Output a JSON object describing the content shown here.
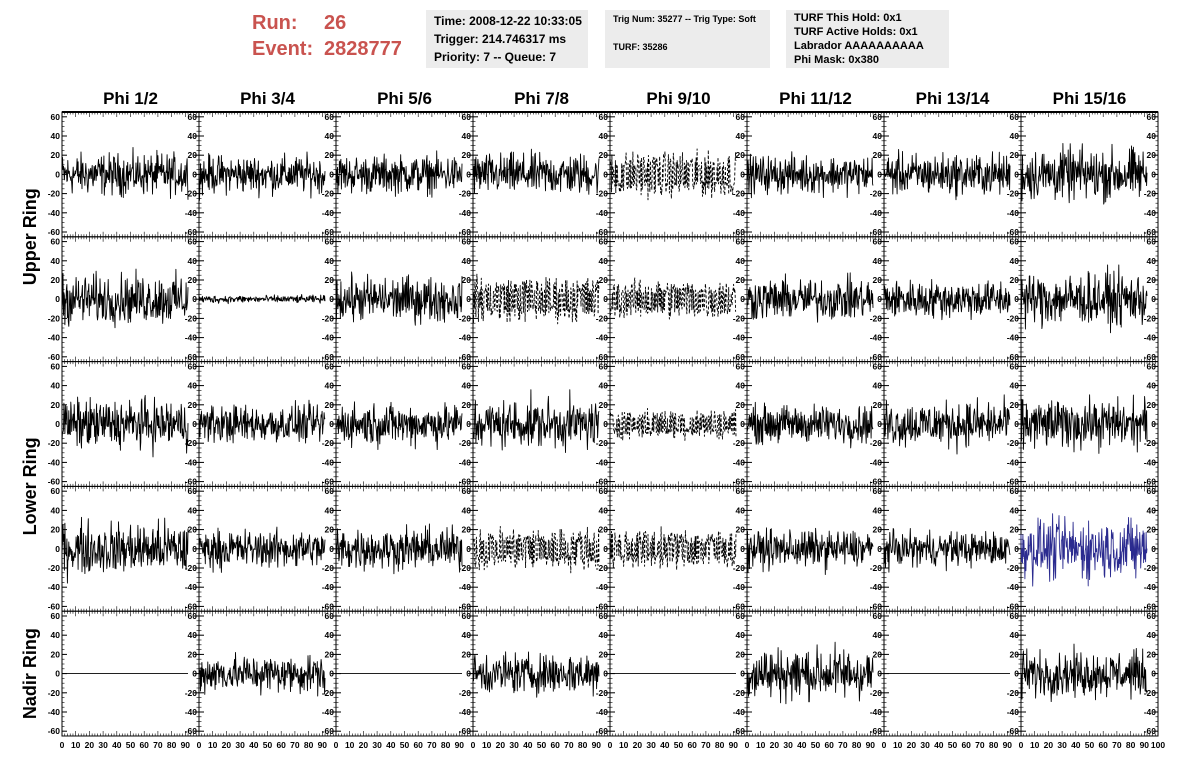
{
  "header": {
    "run_label": "Run:",
    "run_value": "26",
    "event_label": "Event:",
    "event_value": "2828777",
    "box1": [
      "Time: 2008-12-22 10:33:05",
      "Trigger: 214.746317 ms",
      "Priority: 7 -- Queue: 7"
    ],
    "box2": [
      "Trig Num: 35277 -- Trig Type: Soft",
      "",
      "TURF: 35286"
    ],
    "box3": [
      "TURF This Hold: 0x1",
      "TURF Active Holds: 0x1",
      "Labrador AAAAAAAAAA",
      "Phi Mask: 0x380"
    ]
  },
  "colors": {
    "trace": "#000000",
    "highlight_trace": "#2b2b8f",
    "name_red": "#c9534f",
    "box_bg": "#ececec"
  },
  "chart_data": {
    "type": "line",
    "columns": [
      "Phi 1/2",
      "Phi 3/4",
      "Phi 5/6",
      "Phi 7/8",
      "Phi 9/10",
      "Phi 11/12",
      "Phi 13/14",
      "Phi 15/16"
    ],
    "rows": [
      "Upper Ring",
      "Upper Ring",
      "Lower Ring",
      "Lower Ring",
      "Nadir Ring"
    ],
    "row_labels": [
      {
        "label": "Upper Ring",
        "span": [
          0,
          1
        ]
      },
      {
        "label": "Lower Ring",
        "span": [
          2,
          3
        ]
      },
      {
        "label": "Nadir Ring",
        "span": [
          4,
          4
        ]
      }
    ],
    "ylim": [
      -65,
      65
    ],
    "y_ticks": [
      -60,
      -40,
      -20,
      0,
      20,
      40,
      60
    ],
    "y_tick_labels": [
      "-60",
      "-40",
      "-20",
      "0",
      "20",
      "40",
      "60"
    ],
    "xlim": [
      0,
      100
    ],
    "x_ticks": [
      0,
      10,
      20,
      30,
      40,
      50,
      60,
      70,
      80,
      90,
      100
    ],
    "x_tick_labels": [
      "0",
      "10",
      "20",
      "30",
      "40",
      "50",
      "60",
      "70",
      "80",
      "90",
      "100"
    ],
    "samples_per_trace": 260,
    "trace_extent": [
      0,
      92
    ],
    "panels": [
      [
        {
          "amp": 11,
          "style": "solid"
        },
        {
          "amp": 10,
          "style": "solid"
        },
        {
          "amp": 10,
          "style": "solid"
        },
        {
          "amp": 11,
          "style": "solid"
        },
        {
          "amp": 14,
          "style": "dashed"
        },
        {
          "amp": 10,
          "style": "solid"
        },
        {
          "amp": 11,
          "style": "solid"
        },
        {
          "amp": 14,
          "style": "solid"
        }
      ],
      [
        {
          "amp": 13,
          "style": "solid"
        },
        {
          "amp": 2,
          "style": "solid"
        },
        {
          "amp": 12,
          "style": "solid"
        },
        {
          "amp": 14,
          "style": "dashed"
        },
        {
          "amp": 12,
          "style": "dashed"
        },
        {
          "amp": 11,
          "style": "solid"
        },
        {
          "amp": 10,
          "style": "solid"
        },
        {
          "amp": 14,
          "style": "solid"
        }
      ],
      [
        {
          "amp": 13,
          "style": "solid"
        },
        {
          "amp": 10,
          "style": "solid"
        },
        {
          "amp": 11,
          "style": "solid"
        },
        {
          "amp": 13,
          "style": "solid"
        },
        {
          "amp": 9,
          "style": "dashed"
        },
        {
          "amp": 10,
          "style": "solid"
        },
        {
          "amp": 12,
          "style": "solid"
        },
        {
          "amp": 13,
          "style": "solid"
        }
      ],
      [
        {
          "amp": 14,
          "style": "solid"
        },
        {
          "amp": 10,
          "style": "solid"
        },
        {
          "amp": 11,
          "style": "solid"
        },
        {
          "amp": 13,
          "style": "dashed"
        },
        {
          "amp": 12,
          "style": "dashed"
        },
        {
          "amp": 10,
          "style": "solid"
        },
        {
          "amp": 9,
          "style": "solid"
        },
        {
          "amp": 16,
          "style": "blue"
        }
      ],
      [
        {
          "amp": 0,
          "style": "solid"
        },
        {
          "amp": 10,
          "style": "solid"
        },
        {
          "amp": 0,
          "style": "solid"
        },
        {
          "amp": 11,
          "style": "solid"
        },
        {
          "amp": 0,
          "style": "solid"
        },
        {
          "amp": 14,
          "style": "solid"
        },
        {
          "amp": 0,
          "style": "solid"
        },
        {
          "amp": 12,
          "style": "solid"
        }
      ]
    ]
  }
}
